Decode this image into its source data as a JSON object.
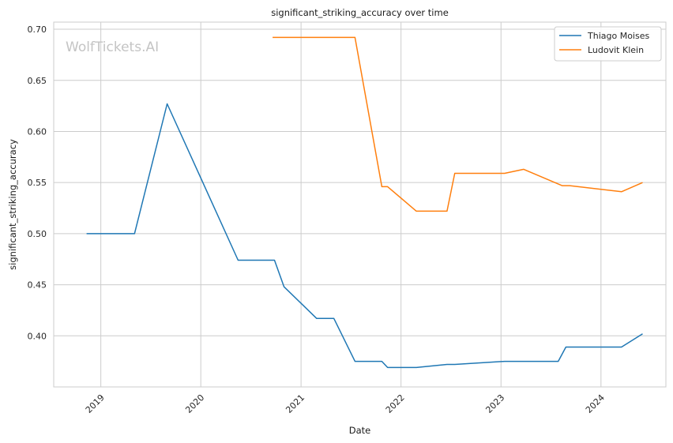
{
  "watermark": "WolfTickets.AI",
  "chart_data": {
    "type": "line",
    "title": "significant_striking_accuracy over time",
    "xlabel": "Date",
    "ylabel": "significant_striking_accuracy",
    "xlim": [
      "2018-07-13",
      "2024-08-25"
    ],
    "ylim": [
      0.35,
      0.707
    ],
    "x_ticks": [
      "2019-01-01",
      "2020-01-01",
      "2021-01-01",
      "2022-01-01",
      "2023-01-01",
      "2024-01-01"
    ],
    "x_tick_labels": [
      "2019",
      "2020",
      "2021",
      "2022",
      "2023",
      "2024"
    ],
    "y_ticks": [
      0.4,
      0.45,
      0.5,
      0.55,
      0.6,
      0.65,
      0.7
    ],
    "y_tick_labels": [
      "0.40",
      "0.45",
      "0.50",
      "0.55",
      "0.60",
      "0.65",
      "0.70"
    ],
    "grid": true,
    "legend_position": "top-right",
    "series": [
      {
        "name": "Thiago Moises",
        "color": "#1f77b4",
        "points": [
          {
            "x": "2018-11-10",
            "y": 0.5
          },
          {
            "x": "2019-05-04",
            "y": 0.5
          },
          {
            "x": "2019-08-31",
            "y": 0.627
          },
          {
            "x": "2020-05-16",
            "y": 0.474
          },
          {
            "x": "2020-09-26",
            "y": 0.474
          },
          {
            "x": "2020-10-31",
            "y": 0.448
          },
          {
            "x": "2021-02-27",
            "y": 0.417
          },
          {
            "x": "2021-05-01",
            "y": 0.417
          },
          {
            "x": "2021-07-17",
            "y": 0.375
          },
          {
            "x": "2021-10-23",
            "y": 0.375
          },
          {
            "x": "2021-11-13",
            "y": 0.369
          },
          {
            "x": "2022-02-26",
            "y": 0.369
          },
          {
            "x": "2022-06-18",
            "y": 0.372
          },
          {
            "x": "2022-07-16",
            "y": 0.372
          },
          {
            "x": "2023-01-14",
            "y": 0.375
          },
          {
            "x": "2023-07-29",
            "y": 0.375
          },
          {
            "x": "2023-08-26",
            "y": 0.389
          },
          {
            "x": "2024-03-16",
            "y": 0.389
          },
          {
            "x": "2024-06-01",
            "y": 0.402
          }
        ]
      },
      {
        "name": "Ludovit Klein",
        "color": "#ff7f0e",
        "points": [
          {
            "x": "2020-09-19",
            "y": 0.692
          },
          {
            "x": "2021-07-17",
            "y": 0.692
          },
          {
            "x": "2021-10-23",
            "y": 0.546
          },
          {
            "x": "2021-11-13",
            "y": 0.546
          },
          {
            "x": "2022-02-26",
            "y": 0.522
          },
          {
            "x": "2022-06-18",
            "y": 0.522
          },
          {
            "x": "2022-07-16",
            "y": 0.559
          },
          {
            "x": "2023-01-14",
            "y": 0.559
          },
          {
            "x": "2023-03-25",
            "y": 0.563
          },
          {
            "x": "2023-08-12",
            "y": 0.547
          },
          {
            "x": "2023-09-09",
            "y": 0.547
          },
          {
            "x": "2024-03-16",
            "y": 0.541
          },
          {
            "x": "2024-06-01",
            "y": 0.55
          }
        ]
      }
    ]
  }
}
